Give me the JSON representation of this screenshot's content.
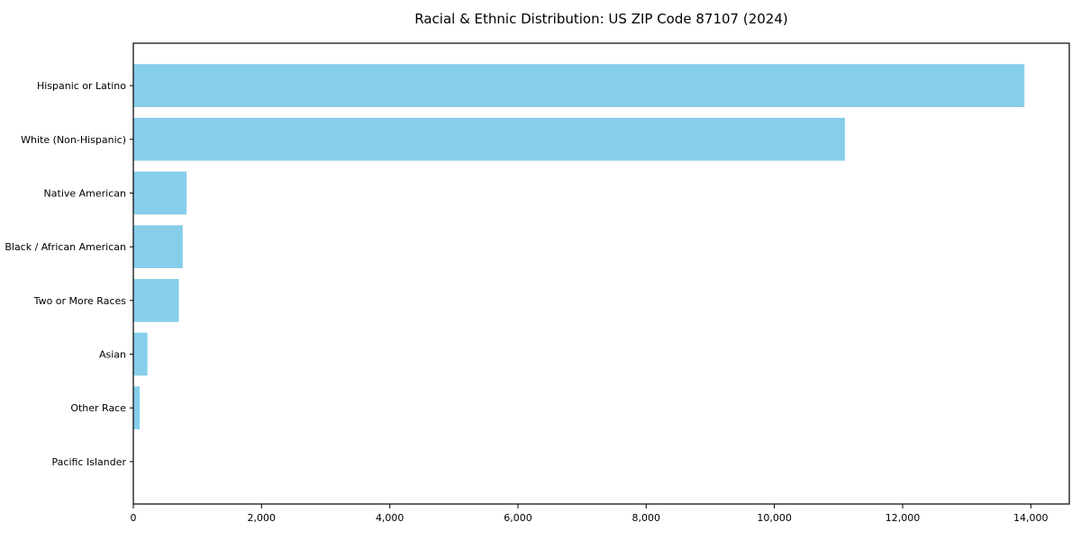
{
  "chart_data": {
    "type": "bar",
    "orientation": "horizontal",
    "title": "Racial & Ethnic Distribution: US ZIP Code 87107 (2024)",
    "categories": [
      "Hispanic or Latino",
      "White (Non-Hispanic)",
      "Native American",
      "Black / African American",
      "Two or More Races",
      "Asian",
      "Other Race",
      "Pacific Islander"
    ],
    "values": [
      13900,
      11100,
      830,
      770,
      710,
      220,
      100,
      0
    ],
    "xlabel": "",
    "ylabel": "",
    "xlim": [
      0,
      14600
    ],
    "xticks": {
      "values": [
        0,
        2000,
        4000,
        6000,
        8000,
        10000,
        12000,
        14000
      ],
      "labels": [
        "0",
        "2,000",
        "4,000",
        "6,000",
        "8,000",
        "10,000",
        "12,000",
        "14,000"
      ]
    },
    "bar_color": "#87CEEB",
    "background_color": "#FFFFFF",
    "axis_color": "#000000",
    "grid": false,
    "legend_position": "none"
  }
}
